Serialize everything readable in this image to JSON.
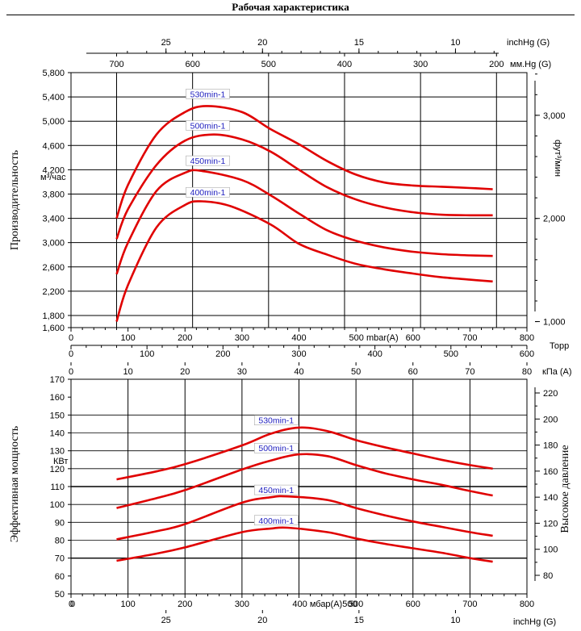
{
  "header": {
    "title": "Рабочая характеристика"
  },
  "colors": {
    "curve": "#e00000",
    "curve_label": "#1f1fbf",
    "grid": "#000000"
  },
  "chart_data": [
    {
      "type": "line",
      "title": "",
      "xlabel": "mbar(A)",
      "ylabel": "Производительность",
      "y_unit": "м³/час",
      "xlim": [
        0,
        800
      ],
      "ylim": [
        1600,
        5800
      ],
      "x_ticks": [
        0,
        100,
        200,
        300,
        400,
        500,
        600,
        700,
        800
      ],
      "y_ticks": [
        1600,
        1800,
        2200,
        2600,
        3000,
        3400,
        3800,
        4200,
        4600,
        5000,
        5400,
        5800
      ],
      "y_tick_labels": [
        "1,600",
        "1,800",
        "2,200",
        "2,600",
        "3,000",
        "3,400",
        "3,800",
        "4,200",
        "4,600",
        "5,000",
        "5,400",
        "5,800"
      ],
      "y2_label": "фут³/мин",
      "y2_ticks": [
        {
          "label": "1,000",
          "value": 1000
        },
        {
          "label": "2,000",
          "value": 2000
        },
        {
          "label": "3,000",
          "value": 3000
        }
      ],
      "top_axes": [
        {
          "unit": "inchHg (G)",
          "ticks": [
            {
              "label": "25",
              "value": 25
            },
            {
              "label": "20",
              "value": 20
            },
            {
              "label": "15",
              "value": 15
            },
            {
              "label": "10",
              "value": 10
            }
          ]
        },
        {
          "unit": "мм.Hg (G)",
          "ticks": [
            {
              "label": "700",
              "value": 700
            },
            {
              "label": "600",
              "value": 600
            },
            {
              "label": "500",
              "value": 500
            },
            {
              "label": "400",
              "value": 400
            },
            {
              "label": "300",
              "value": 300
            },
            {
              "label": "200",
              "value": 200
            }
          ]
        }
      ],
      "series": [
        {
          "name": "530min-1",
          "label_at": [
            240,
            5410
          ],
          "points": [
            [
              80,
              3400
            ],
            [
              100,
              3950
            ],
            [
              150,
              4780
            ],
            [
              200,
              5150
            ],
            [
              240,
              5250
            ],
            [
              300,
              5150
            ],
            [
              350,
              4870
            ],
            [
              400,
              4620
            ],
            [
              450,
              4340
            ],
            [
              500,
              4120
            ],
            [
              550,
              3990
            ],
            [
              600,
              3940
            ],
            [
              650,
              3920
            ],
            [
              700,
              3900
            ],
            [
              740,
              3880
            ]
          ]
        },
        {
          "name": "500min-1",
          "label_at": [
            240,
            4890
          ],
          "points": [
            [
              80,
              3060
            ],
            [
              100,
              3550
            ],
            [
              150,
              4280
            ],
            [
              200,
              4680
            ],
            [
              250,
              4780
            ],
            [
              300,
              4700
            ],
            [
              350,
              4500
            ],
            [
              400,
              4200
            ],
            [
              450,
              3910
            ],
            [
              500,
              3710
            ],
            [
              550,
              3580
            ],
            [
              600,
              3500
            ],
            [
              650,
              3460
            ],
            [
              700,
              3450
            ],
            [
              740,
              3450
            ]
          ]
        },
        {
          "name": "450min-1",
          "label_at": [
            240,
            4310
          ],
          "points": [
            [
              80,
              2480
            ],
            [
              100,
              3000
            ],
            [
              150,
              3850
            ],
            [
              200,
              4150
            ],
            [
              230,
              4180
            ],
            [
              300,
              4030
            ],
            [
              350,
              3780
            ],
            [
              400,
              3480
            ],
            [
              450,
              3200
            ],
            [
              500,
              3030
            ],
            [
              550,
              2920
            ],
            [
              600,
              2850
            ],
            [
              650,
              2810
            ],
            [
              700,
              2790
            ],
            [
              740,
              2780
            ]
          ]
        },
        {
          "name": "400min-1",
          "label_at": [
            240,
            3790
          ],
          "points": [
            [
              80,
              1700
            ],
            [
              100,
              2300
            ],
            [
              150,
              3250
            ],
            [
              200,
              3620
            ],
            [
              230,
              3680
            ],
            [
              280,
              3600
            ],
            [
              350,
              3300
            ],
            [
              400,
              2980
            ],
            [
              450,
              2800
            ],
            [
              500,
              2650
            ],
            [
              550,
              2560
            ],
            [
              600,
              2490
            ],
            [
              650,
              2430
            ],
            [
              700,
              2390
            ],
            [
              740,
              2360
            ]
          ]
        }
      ]
    },
    {
      "type": "line",
      "title": "",
      "xlabel": "мбар(A)",
      "ylabel": "Эффективная мощность",
      "y_unit": "КВт",
      "xlim": [
        0,
        800
      ],
      "ylim": [
        50,
        170
      ],
      "x_ticks": [
        0,
        100,
        200,
        300,
        400,
        500,
        600,
        700,
        800
      ],
      "y_ticks": [
        50,
        60,
        70,
        80,
        90,
        100,
        110,
        120,
        130,
        140,
        150,
        160,
        170
      ],
      "y2_label": "Высокое давление",
      "y2_ticks": [
        {
          "label": "80",
          "value": 80
        },
        {
          "label": "100",
          "value": 100
        },
        {
          "label": "120",
          "value": 120
        },
        {
          "label": "140",
          "value": 140
        },
        {
          "label": "160",
          "value": 160
        },
        {
          "label": "180",
          "value": 180
        },
        {
          "label": "200",
          "value": 200
        },
        {
          "label": "220",
          "value": 220
        }
      ],
      "top_axes": [
        {
          "unit": "Торр",
          "ticks": [
            {
              "label": "0",
              "value": 0
            },
            {
              "label": "100",
              "value": 100
            },
            {
              "label": "200",
              "value": 200
            },
            {
              "label": "300",
              "value": 300
            },
            {
              "label": "400",
              "value": 400
            },
            {
              "label": "500",
              "value": 500
            },
            {
              "label": "600",
              "value": 600
            }
          ]
        },
        {
          "unit": "кПа (A)",
          "ticks": [
            {
              "label": "0",
              "value": 0
            },
            {
              "label": "10",
              "value": 10
            },
            {
              "label": "20",
              "value": 20
            },
            {
              "label": "30",
              "value": 30
            },
            {
              "label": "40",
              "value": 40
            },
            {
              "label": "50",
              "value": 50
            },
            {
              "label": "60",
              "value": 60
            },
            {
              "label": "70",
              "value": 70
            },
            {
              "label": "80",
              "value": 80
            }
          ]
        }
      ],
      "bottom_axis2": {
        "unit": "inchHg (G)",
        "ticks": [
          {
            "label": "25",
            "value": 25
          },
          {
            "label": "20",
            "value": 20
          },
          {
            "label": "15",
            "value": 15
          },
          {
            "label": "10",
            "value": 10
          }
        ]
      },
      "series": [
        {
          "name": "530min-1",
          "label_at": [
            360,
            145.8
          ],
          "points": [
            [
              80,
              114
            ],
            [
              150,
              118.5
            ],
            [
              200,
              122.5
            ],
            [
              300,
              133
            ],
            [
              350,
              139.5
            ],
            [
              400,
              143
            ],
            [
              450,
              141
            ],
            [
              500,
              136
            ],
            [
              550,
              132
            ],
            [
              600,
              128.5
            ],
            [
              650,
              125
            ],
            [
              700,
              122
            ],
            [
              740,
              120
            ]
          ]
        },
        {
          "name": "500min-1",
          "label_at": [
            360,
            130.2
          ],
          "points": [
            [
              80,
              98
            ],
            [
              150,
              103.5
            ],
            [
              200,
              108
            ],
            [
              300,
              119.5
            ],
            [
              350,
              124.5
            ],
            [
              400,
              128
            ],
            [
              450,
              127
            ],
            [
              500,
              122
            ],
            [
              550,
              117.5
            ],
            [
              600,
              114
            ],
            [
              650,
              111
            ],
            [
              700,
              107.5
            ],
            [
              740,
              105
            ]
          ]
        },
        {
          "name": "450min-1",
          "label_at": [
            360,
            106.8
          ],
          "points": [
            [
              80,
              80.5
            ],
            [
              150,
              85
            ],
            [
              200,
              89
            ],
            [
              300,
              101
            ],
            [
              350,
              104
            ],
            [
              380,
              104.5
            ],
            [
              450,
              102.5
            ],
            [
              500,
              98
            ],
            [
              550,
              94
            ],
            [
              600,
              90.5
            ],
            [
              650,
              87.5
            ],
            [
              700,
              84.5
            ],
            [
              740,
              82.5
            ]
          ]
        },
        {
          "name": "400min-1",
          "label_at": [
            360,
            89.8
          ],
          "points": [
            [
              80,
              68.5
            ],
            [
              150,
              72.5
            ],
            [
              200,
              76
            ],
            [
              300,
              84.5
            ],
            [
              350,
              86.5
            ],
            [
              380,
              87
            ],
            [
              450,
              84.5
            ],
            [
              500,
              81
            ],
            [
              550,
              78
            ],
            [
              600,
              75.5
            ],
            [
              650,
              73
            ],
            [
              700,
              70
            ],
            [
              740,
              68
            ]
          ]
        }
      ]
    }
  ]
}
